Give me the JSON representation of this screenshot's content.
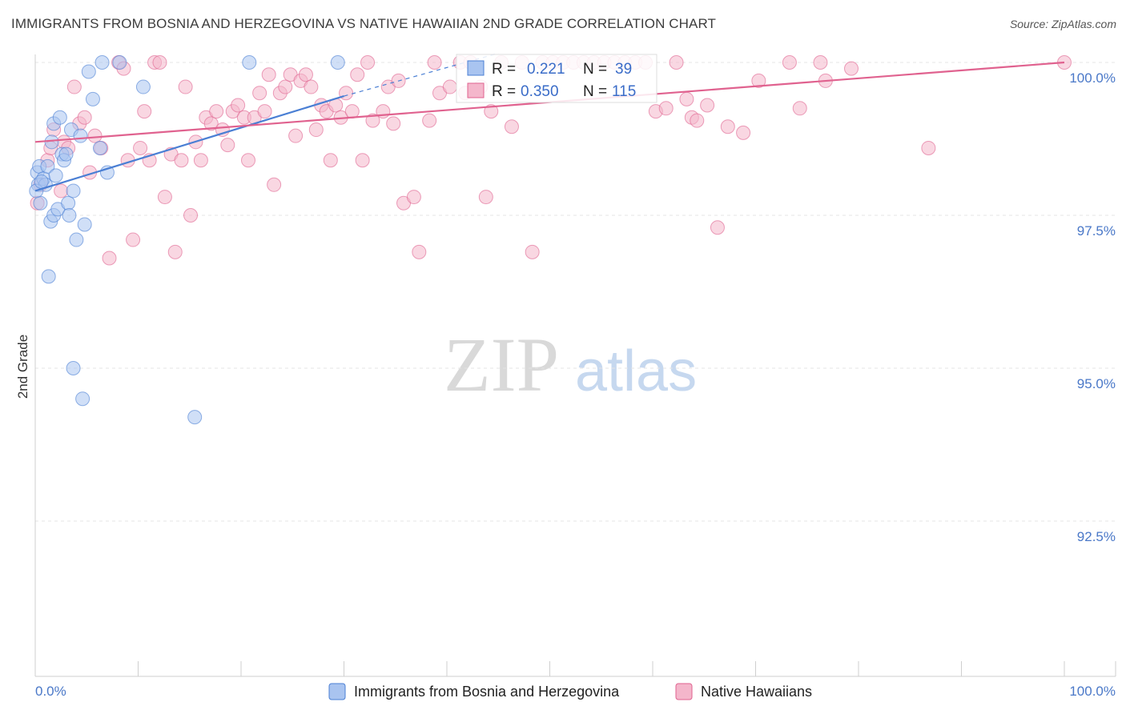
{
  "title": "IMMIGRANTS FROM BOSNIA AND HERZEGOVINA VS NATIVE HAWAIIAN 2ND GRADE CORRELATION CHART",
  "source": "Source: ZipAtlas.com",
  "watermark": {
    "zip": "ZIP",
    "atlas": "atlas"
  },
  "colors": {
    "blue": "#4a7fd4",
    "blue_fill": "#a9c4f0",
    "pink": "#e0628f",
    "pink_fill": "#f4b6cb",
    "tick": "#4a78c8"
  },
  "chart_data": {
    "type": "scatter",
    "title": "IMMIGRANTS FROM BOSNIA AND HERZEGOVINA VS NATIVE HAWAIIAN 2ND GRADE CORRELATION CHART",
    "xlabel": "",
    "ylabel": "2nd Grade",
    "xlim": [
      0,
      100
    ],
    "ylim": [
      90.5,
      100.4
    ],
    "x_tick_labels": {
      "left": "0.0%",
      "right": "100.0%"
    },
    "y_ticks": [
      {
        "value": 100.0,
        "label": "100.0%"
      },
      {
        "value": 97.5,
        "label": "97.5%"
      },
      {
        "value": 95.0,
        "label": "95.0%"
      },
      {
        "value": 92.5,
        "label": "92.5%"
      }
    ],
    "grid": true,
    "legend_position": "bottom-center",
    "stats": [
      {
        "r_label": "R =",
        "r": "0.221",
        "n_label": "N =",
        "n": "39"
      },
      {
        "r_label": "R =",
        "r": "0.350",
        "n_label": "N =",
        "n": "115"
      }
    ],
    "series": [
      {
        "name": "Immigrants from Bosnia and Herzegovina",
        "color": "#4a7fd4",
        "trend": {
          "x0": 0,
          "y0": 97.9,
          "x1": 30,
          "y1": 99.45,
          "dashed_to_x": 45,
          "dashed_to_y": 100.15
        },
        "points": [
          [
            0.2,
            98.2
          ],
          [
            0.3,
            98.0
          ],
          [
            0.4,
            98.3
          ],
          [
            0.5,
            97.7
          ],
          [
            0.8,
            98.1
          ],
          [
            1.0,
            98.0
          ],
          [
            1.2,
            98.3
          ],
          [
            1.5,
            97.4
          ],
          [
            1.6,
            98.7
          ],
          [
            1.8,
            97.5
          ],
          [
            1.8,
            99.0
          ],
          [
            2.2,
            97.6
          ],
          [
            2.4,
            99.1
          ],
          [
            2.6,
            98.5
          ],
          [
            2.8,
            98.4
          ],
          [
            3.0,
            98.5
          ],
          [
            3.2,
            97.7
          ],
          [
            3.3,
            97.5
          ],
          [
            3.5,
            98.9
          ],
          [
            3.7,
            97.9
          ],
          [
            4.0,
            97.1
          ],
          [
            4.4,
            98.8
          ],
          [
            4.8,
            97.35
          ],
          [
            5.2,
            99.85
          ],
          [
            5.6,
            99.4
          ],
          [
            6.3,
            98.6
          ],
          [
            6.5,
            100.0
          ],
          [
            7.0,
            98.2
          ],
          [
            8.2,
            100.0
          ],
          [
            10.5,
            99.6
          ],
          [
            20.8,
            100.0
          ],
          [
            29.4,
            100.0
          ],
          [
            1.3,
            96.5
          ],
          [
            3.7,
            95.0
          ],
          [
            4.6,
            94.5
          ],
          [
            15.5,
            94.2
          ],
          [
            0.1,
            97.9
          ],
          [
            0.6,
            98.05
          ],
          [
            2.0,
            98.15
          ]
        ]
      },
      {
        "name": "Native Hawaiians",
        "color": "#e0628f",
        "trend": {
          "x0": 0,
          "y0": 98.7,
          "x1": 100,
          "y1": 100.0
        },
        "points": [
          [
            0.2,
            97.7
          ],
          [
            0.5,
            98.0
          ],
          [
            1.2,
            98.4
          ],
          [
            1.5,
            98.6
          ],
          [
            1.8,
            98.9
          ],
          [
            2.5,
            97.9
          ],
          [
            2.8,
            98.7
          ],
          [
            3.2,
            98.6
          ],
          [
            3.8,
            99.6
          ],
          [
            4.3,
            99.0
          ],
          [
            4.8,
            99.1
          ],
          [
            5.3,
            98.2
          ],
          [
            5.8,
            98.8
          ],
          [
            6.4,
            98.6
          ],
          [
            7.2,
            96.8
          ],
          [
            8.1,
            100.0
          ],
          [
            8.6,
            99.9
          ],
          [
            9.0,
            98.4
          ],
          [
            9.5,
            97.1
          ],
          [
            10.2,
            98.6
          ],
          [
            10.6,
            99.2
          ],
          [
            11.1,
            98.4
          ],
          [
            11.6,
            100.0
          ],
          [
            12.1,
            100.0
          ],
          [
            12.6,
            97.8
          ],
          [
            13.2,
            98.5
          ],
          [
            13.6,
            96.9
          ],
          [
            14.2,
            98.4
          ],
          [
            14.6,
            99.6
          ],
          [
            15.1,
            97.5
          ],
          [
            15.6,
            98.7
          ],
          [
            16.1,
            98.4
          ],
          [
            16.6,
            99.1
          ],
          [
            17.1,
            99.0
          ],
          [
            17.6,
            99.2
          ],
          [
            18.2,
            98.9
          ],
          [
            18.7,
            98.65
          ],
          [
            19.2,
            99.2
          ],
          [
            19.7,
            99.3
          ],
          [
            20.3,
            99.1
          ],
          [
            20.7,
            98.4
          ],
          [
            21.3,
            99.1
          ],
          [
            21.8,
            99.5
          ],
          [
            22.3,
            99.2
          ],
          [
            22.7,
            99.8
          ],
          [
            23.2,
            98.0
          ],
          [
            23.8,
            99.5
          ],
          [
            24.3,
            99.6
          ],
          [
            24.8,
            99.8
          ],
          [
            25.3,
            98.8
          ],
          [
            25.8,
            99.7
          ],
          [
            26.3,
            99.8
          ],
          [
            26.8,
            99.6
          ],
          [
            27.3,
            98.9
          ],
          [
            27.8,
            99.3
          ],
          [
            28.3,
            99.2
          ],
          [
            28.7,
            98.4
          ],
          [
            29.2,
            99.3
          ],
          [
            29.7,
            99.1
          ],
          [
            30.2,
            99.5
          ],
          [
            30.8,
            99.2
          ],
          [
            31.3,
            99.8
          ],
          [
            31.8,
            98.4
          ],
          [
            32.3,
            100.0
          ],
          [
            32.8,
            99.05
          ],
          [
            33.8,
            99.2
          ],
          [
            34.3,
            99.6
          ],
          [
            34.8,
            99.0
          ],
          [
            35.3,
            99.7
          ],
          [
            35.8,
            97.7
          ],
          [
            36.8,
            97.8
          ],
          [
            37.3,
            96.9
          ],
          [
            38.3,
            99.05
          ],
          [
            38.8,
            100.0
          ],
          [
            39.3,
            99.5
          ],
          [
            40.3,
            99.6
          ],
          [
            41.3,
            100.0
          ],
          [
            41.8,
            99.5
          ],
          [
            42.3,
            100.0
          ],
          [
            43.3,
            99.6
          ],
          [
            43.8,
            97.8
          ],
          [
            44.3,
            99.2
          ],
          [
            45.3,
            100.0
          ],
          [
            46.3,
            98.95
          ],
          [
            47.3,
            100.0
          ],
          [
            48.3,
            96.9
          ],
          [
            49.3,
            100.0
          ],
          [
            50.3,
            100.0
          ],
          [
            51.3,
            100.0
          ],
          [
            52.3,
            100.0
          ],
          [
            53.3,
            100.0
          ],
          [
            54.3,
            100.0
          ],
          [
            55.3,
            100.0
          ],
          [
            56.3,
            100.0
          ],
          [
            57.3,
            100.0
          ],
          [
            58.3,
            100.0
          ],
          [
            59.3,
            100.0
          ],
          [
            60.3,
            99.2
          ],
          [
            61.3,
            99.25
          ],
          [
            62.3,
            100.0
          ],
          [
            63.3,
            99.4
          ],
          [
            63.8,
            99.1
          ],
          [
            64.3,
            99.05
          ],
          [
            65.3,
            99.3
          ],
          [
            66.3,
            97.3
          ],
          [
            67.3,
            98.95
          ],
          [
            68.8,
            98.85
          ],
          [
            70.3,
            99.7
          ],
          [
            73.3,
            100.0
          ],
          [
            74.3,
            99.25
          ],
          [
            76.3,
            100.0
          ],
          [
            76.8,
            99.7
          ],
          [
            79.3,
            99.9
          ],
          [
            86.8,
            98.6
          ],
          [
            100.0,
            100.0
          ]
        ]
      }
    ]
  },
  "legend": {
    "blue_label": "Immigrants from Bosnia and Herzegovina",
    "pink_label": "Native Hawaiians"
  }
}
